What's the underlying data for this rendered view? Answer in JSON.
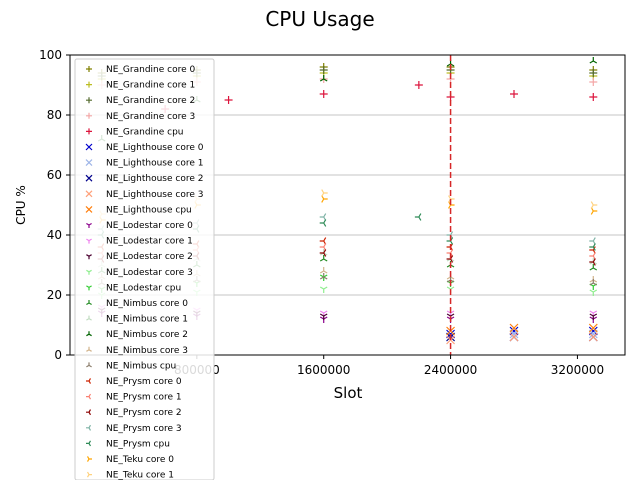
{
  "chart_data": {
    "type": "scatter",
    "title": "CPU Usage",
    "xlabel": "Slot",
    "ylabel": "CPU %",
    "xlim": [
      0,
      3500000
    ],
    "ylim": [
      0,
      100
    ],
    "xticks": [
      800000,
      1600000,
      2400000,
      3200000
    ],
    "xtick_labels": [
      "800000",
      "1600000",
      "2400000",
      "3200000"
    ],
    "yticks": [
      0,
      20,
      40,
      60,
      80,
      100
    ],
    "ytick_labels": [
      "0",
      "20",
      "40",
      "60",
      "80",
      "100"
    ],
    "grid": "horizontal",
    "legend_position": "upper-left",
    "reference_line": {
      "x": 2400000,
      "style": "dashed",
      "color": "#d62728"
    },
    "series": [
      {
        "name": "NE_Grandine core 0",
        "marker": "+",
        "color": "#808000",
        "x": [
          200000,
          800000,
          1600000,
          2400000,
          3300000
        ],
        "y": [
          94,
          95,
          96,
          96,
          95
        ]
      },
      {
        "name": "NE_Grandine core 1",
        "marker": "+",
        "color": "#bcbd22",
        "x": [
          200000,
          800000,
          1600000,
          2400000,
          3300000
        ],
        "y": [
          92,
          93,
          94,
          94,
          93
        ]
      },
      {
        "name": "NE_Grandine core 2",
        "marker": "+",
        "color": "#556b2f",
        "x": [
          200000,
          800000,
          1600000,
          2400000,
          3300000
        ],
        "y": [
          93,
          94,
          95,
          95,
          94
        ]
      },
      {
        "name": "NE_Grandine core 3",
        "marker": "+",
        "color": "#f4a6a6",
        "x": [
          200000,
          800000,
          1600000,
          2400000,
          3300000
        ],
        "y": [
          90,
          91,
          92,
          92,
          91
        ]
      },
      {
        "name": "NE_Grandine cpu",
        "marker": "+",
        "color": "#dc143c",
        "x": [
          600000,
          1000000,
          1600000,
          2200000,
          2400000,
          2800000,
          3300000
        ],
        "y": [
          82,
          85,
          87,
          90,
          86,
          87,
          86
        ]
      },
      {
        "name": "NE_Lighthouse core 0",
        "marker": "x",
        "color": "#0000cd",
        "x": [
          2400000,
          2800000,
          3300000
        ],
        "y": [
          7,
          8,
          8
        ]
      },
      {
        "name": "NE_Lighthouse core 1",
        "marker": "x",
        "color": "#9fb6e8",
        "x": [
          2400000,
          2800000,
          3300000
        ],
        "y": [
          6,
          7,
          7
        ]
      },
      {
        "name": "NE_Lighthouse core 2",
        "marker": "x",
        "color": "#00008b",
        "x": [
          2400000,
          2800000,
          3300000
        ],
        "y": [
          6,
          6,
          6
        ]
      },
      {
        "name": "NE_Lighthouse core 3",
        "marker": "x",
        "color": "#ffa07a",
        "x": [
          2400000,
          2800000,
          3300000
        ],
        "y": [
          5,
          6,
          6
        ]
      },
      {
        "name": "NE_Lighthouse cpu",
        "marker": "x",
        "color": "#ff7f0e",
        "x": [
          2400000,
          2800000,
          3300000
        ],
        "y": [
          8,
          9,
          9
        ]
      },
      {
        "name": "NE_Lodestar core 0",
        "marker": "1",
        "color": "#8b008b",
        "x": [
          200000,
          800000,
          1600000,
          2400000,
          3300000
        ],
        "y": [
          14,
          13,
          12,
          12,
          12
        ]
      },
      {
        "name": "NE_Lodestar core 1",
        "marker": "1",
        "color": "#ee82ee",
        "x": [
          200000,
          800000,
          1600000,
          2400000,
          3300000
        ],
        "y": [
          16,
          15,
          14,
          14,
          14
        ]
      },
      {
        "name": "NE_Lodestar core 2",
        "marker": "1",
        "color": "#4b0030",
        "x": [
          200000,
          800000,
          1600000,
          2400000,
          3300000
        ],
        "y": [
          15,
          14,
          13,
          13,
          13
        ]
      },
      {
        "name": "NE_Lodestar core 3",
        "marker": "1",
        "color": "#90ee90",
        "x": [
          200000,
          800000,
          1600000,
          2400000,
          3300000
        ],
        "y": [
          20,
          21,
          22,
          22,
          21
        ]
      },
      {
        "name": "NE_Lodestar cpu",
        "marker": "1",
        "color": "#32cd32",
        "x": [
          200000,
          800000,
          1600000,
          2400000,
          3300000
        ],
        "y": [
          22,
          24,
          26,
          24,
          23
        ]
      },
      {
        "name": "NE_Nimbus core 0",
        "marker": "2",
        "color": "#228b22",
        "x": [
          200000,
          800000,
          1600000,
          2400000,
          3300000
        ],
        "y": [
          28,
          30,
          32,
          30,
          29
        ]
      },
      {
        "name": "NE_Nimbus core 1",
        "marker": "2",
        "color": "#c0dcc0",
        "x": [
          200000,
          800000,
          1600000,
          2400000,
          3300000
        ],
        "y": [
          30,
          32,
          34,
          32,
          31
        ]
      },
      {
        "name": "NE_Nimbus core 2",
        "marker": "2",
        "color": "#006400",
        "x": [
          200000,
          800000,
          1600000,
          2400000,
          3300000
        ],
        "y": [
          72,
          85,
          92,
          97,
          98
        ]
      },
      {
        "name": "NE_Nimbus core 3",
        "marker": "2",
        "color": "#d2b48c",
        "x": [
          200000,
          800000,
          1600000,
          2400000,
          3300000
        ],
        "y": [
          26,
          27,
          28,
          26,
          25
        ]
      },
      {
        "name": "NE_Nimbus cpu",
        "marker": "2",
        "color": "#8b7d6b",
        "x": [
          200000,
          800000,
          1600000,
          2400000,
          3300000
        ],
        "y": [
          24,
          25,
          26,
          25,
          24
        ]
      },
      {
        "name": "NE_Prysm core 0",
        "marker": "3",
        "color": "#cc2200",
        "x": [
          200000,
          800000,
          1600000,
          2400000,
          3300000
        ],
        "y": [
          36,
          37,
          38,
          36,
          35
        ]
      },
      {
        "name": "NE_Prysm core 1",
        "marker": "3",
        "color": "#fa8072",
        "x": [
          200000,
          800000,
          1600000,
          2400000,
          3300000
        ],
        "y": [
          34,
          35,
          36,
          34,
          33
        ]
      },
      {
        "name": "NE_Prysm core 2",
        "marker": "3",
        "color": "#8b0000",
        "x": [
          200000,
          800000,
          1600000,
          2400000,
          3300000
        ],
        "y": [
          32,
          33,
          34,
          32,
          31
        ]
      },
      {
        "name": "NE_Prysm core 3",
        "marker": "3",
        "color": "#7fb3a6",
        "x": [
          200000,
          800000,
          1600000,
          2400000,
          3300000
        ],
        "y": [
          42,
          44,
          46,
          40,
          38
        ]
      },
      {
        "name": "NE_Prysm cpu",
        "marker": "3",
        "color": "#2e8b57",
        "x": [
          200000,
          800000,
          1600000,
          2200000,
          2400000,
          3300000
        ],
        "y": [
          40,
          42,
          44,
          46,
          38,
          36
        ]
      },
      {
        "name": "NE_Teku core 0",
        "marker": "4",
        "color": "#ffa500",
        "x": [
          200000,
          800000,
          1600000,
          2400000,
          3300000
        ],
        "y": [
          45,
          50,
          52,
          50,
          48
        ]
      },
      {
        "name": "NE_Teku core 1",
        "marker": "4",
        "color": "#ffd27f",
        "x": [
          200000,
          800000,
          1600000,
          2400000,
          3300000
        ],
        "y": [
          47,
          52,
          54,
          52,
          50
        ]
      }
    ]
  }
}
